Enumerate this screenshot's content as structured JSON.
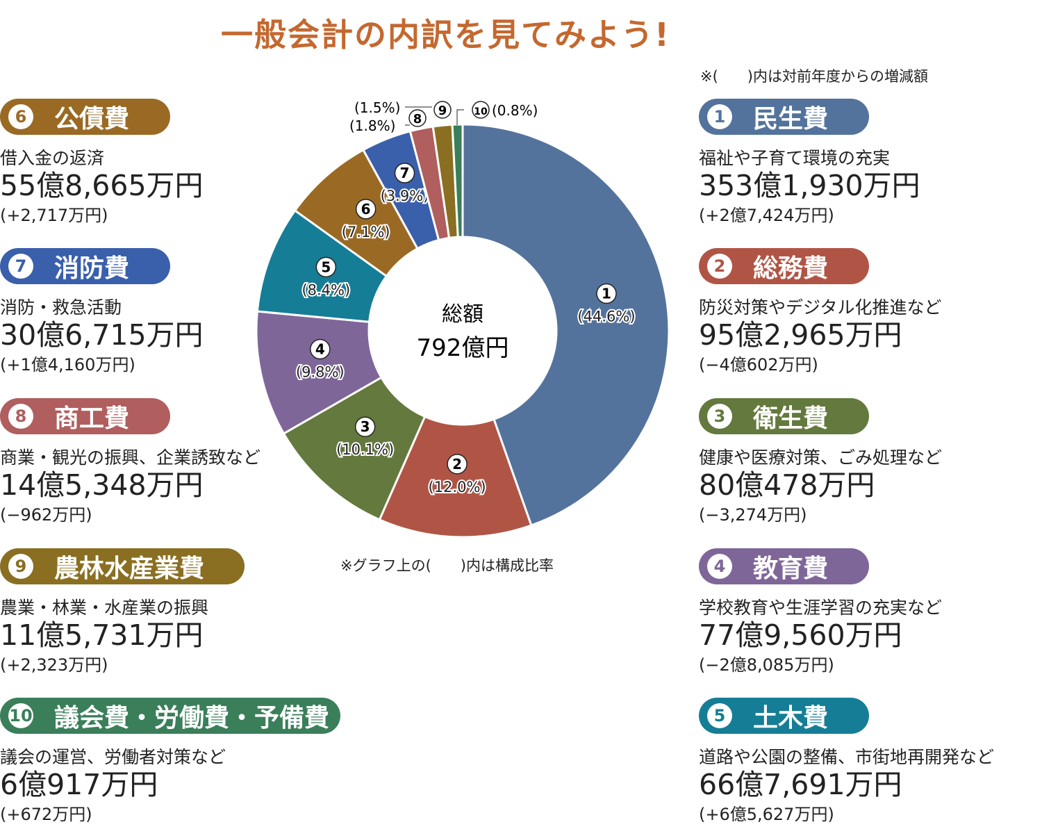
{
  "title": "一般会計の内訳を見てみよう!",
  "note_top": "※(　　)内は対前年度からの増減額",
  "note_chart": "※グラフ上の(　　)内は構成比率",
  "chart_data": {
    "type": "pie",
    "donut": true,
    "center_label": "総額",
    "center_value": "792億円",
    "categories": [
      "民生費",
      "総務費",
      "衛生費",
      "教育費",
      "土木費",
      "公債費",
      "消防費",
      "商工費",
      "農林水産業費",
      "議会費・労働費・予備費"
    ],
    "markers": [
      "①",
      "②",
      "③",
      "④",
      "⑤",
      "⑥",
      "⑦",
      "⑧",
      "⑨",
      "⑩"
    ],
    "values": [
      44.6,
      12.0,
      10.1,
      9.8,
      8.4,
      7.1,
      3.9,
      1.8,
      1.5,
      0.8
    ],
    "value_labels": [
      "(44.6%)",
      "(12.0%)",
      "(10.1%)",
      "(9.8%)",
      "(8.4%)",
      "(7.1%)",
      "(3.9%)",
      "(1.8%)",
      "(1.5%)",
      "(0.8%)"
    ],
    "colors": [
      "#53739c",
      "#b05545",
      "#64793d",
      "#7f6699",
      "#157e96",
      "#9a6a24",
      "#3a5fab",
      "#b05e5e",
      "#8a6f22",
      "#3a7f5a"
    ]
  },
  "items": [
    {
      "num": "1",
      "name": "民生費",
      "desc": "福祉や子育て環境の充実",
      "amount": "353億1,930万円",
      "change": "(+2億7,424万円)"
    },
    {
      "num": "2",
      "name": "総務費",
      "desc": "防災対策やデジタル化推進など",
      "amount": "95億2,965万円",
      "change": "(−4億602万円)"
    },
    {
      "num": "3",
      "name": "衛生費",
      "desc": "健康や医療対策、ごみ処理など",
      "amount": "80億478万円",
      "change": "(−3,274万円)"
    },
    {
      "num": "4",
      "name": "教育費",
      "desc": "学校教育や生涯学習の充実など",
      "amount": "77億9,560万円",
      "change": "(−2億8,085万円)"
    },
    {
      "num": "5",
      "name": "土木費",
      "desc": "道路や公園の整備、市街地再開発など",
      "amount": "66億7,691万円",
      "change": "(+6億5,627万円)"
    },
    {
      "num": "6",
      "name": "公債費",
      "desc": "借入金の返済",
      "amount": "55億8,665万円",
      "change": "(+2,717万円)"
    },
    {
      "num": "7",
      "name": "消防費",
      "desc": "消防・救急活動",
      "amount": "30億6,715万円",
      "change": "(+1億4,160万円)"
    },
    {
      "num": "8",
      "name": "商工費",
      "desc": "商業・観光の振興、企業誘致など",
      "amount": "14億5,348万円",
      "change": "(−962万円)"
    },
    {
      "num": "9",
      "name": "農林水産業費",
      "desc": "農業・林業・水産業の振興",
      "amount": "11億5,731万円",
      "change": "(+2,323万円)"
    },
    {
      "num": "10",
      "name": "議会費・労働費・予備費",
      "desc": "議会の運営、労働者対策など",
      "amount": "6億917万円",
      "change": "(+672万円)"
    }
  ]
}
